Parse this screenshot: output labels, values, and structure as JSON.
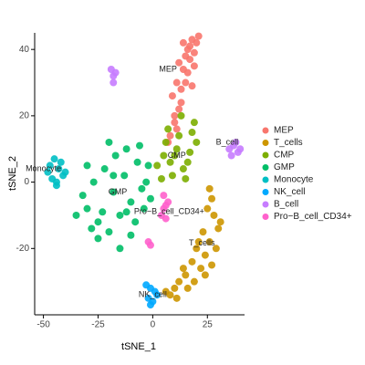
{
  "chart_data": {
    "type": "scatter",
    "x_label": "tSNE_1",
    "y_label": "tSNE_2",
    "xlim": [
      -54,
      42
    ],
    "ylim": [
      -40,
      45
    ],
    "xticks": [
      -50,
      -25,
      0,
      25
    ],
    "yticks": [
      -20,
      0,
      20,
      40
    ],
    "grid": false,
    "legend": "right",
    "series": [
      {
        "name": "MEP",
        "color": "#F8766D",
        "x": [
          8,
          10,
          12,
          9,
          11,
          13,
          14,
          12,
          15,
          16,
          14,
          17,
          18,
          16,
          19,
          20,
          15,
          13,
          11,
          17,
          19,
          21,
          18,
          10,
          7
        ],
        "y": [
          14,
          18,
          22,
          26,
          30,
          28,
          34,
          36,
          38,
          40,
          42,
          41,
          43,
          33,
          39,
          42,
          30,
          24,
          16,
          37,
          35,
          44,
          29,
          20,
          12
        ]
      },
      {
        "name": "T_cells",
        "color": "#CD9600",
        "x": [
          27,
          25,
          28,
          30,
          26,
          23,
          24,
          20,
          22,
          18,
          15,
          12,
          10,
          8,
          6,
          14,
          19,
          24,
          29,
          31,
          27,
          21,
          16,
          11,
          26
        ],
        "y": [
          -5,
          -8,
          -10,
          -14,
          -18,
          -15,
          -22,
          -20,
          -26,
          -24,
          -28,
          -30,
          -32,
          -34,
          -33,
          -26,
          -30,
          -28,
          -20,
          -12,
          -25,
          -18,
          -32,
          -35,
          -2
        ]
      },
      {
        "name": "CMP",
        "color": "#7CAE00",
        "x": [
          2,
          5,
          8,
          11,
          14,
          17,
          19,
          6,
          9,
          12,
          15,
          18,
          4,
          10,
          16,
          13,
          7,
          20
        ],
        "y": [
          5,
          8,
          6,
          10,
          4,
          9,
          18,
          12,
          2,
          14,
          1,
          15,
          1,
          8,
          6,
          20,
          16,
          12
        ]
      },
      {
        "name": "GMP",
        "color": "#00BE67",
        "x": [
          -35,
          -30,
          -25,
          -20,
          -15,
          -10,
          -5,
          -2,
          -32,
          -27,
          -22,
          -17,
          -12,
          -7,
          -3,
          -28,
          -23,
          -18,
          -13,
          -8,
          -4,
          -30,
          -20,
          -10,
          -15,
          -25,
          -18,
          -6,
          -12,
          -1
        ],
        "y": [
          -10,
          -8,
          -12,
          -15,
          -10,
          -6,
          -2,
          5,
          -4,
          0,
          4,
          8,
          10,
          6,
          0,
          -14,
          -9,
          -3,
          2,
          -12,
          -8,
          5,
          12,
          -16,
          -20,
          -17,
          2,
          11,
          -9,
          -5
        ]
      },
      {
        "name": "Monocyte",
        "color": "#00BFC4",
        "x": [
          -47,
          -45,
          -43,
          -41,
          -46,
          -44,
          -42,
          -40,
          -48,
          -44
        ],
        "y": [
          5,
          7,
          4,
          2,
          1,
          -1,
          6,
          3,
          3,
          0
        ]
      },
      {
        "name": "NK_cell",
        "color": "#00A9FF",
        "x": [
          -3,
          -1,
          1,
          -2,
          0,
          2,
          -1
        ],
        "y": [
          -31,
          -32,
          -33,
          -35,
          -36,
          -34,
          -37
        ]
      },
      {
        "name": "B_cell",
        "color": "#C77CFF",
        "x": [
          35,
          37,
          39,
          36,
          38,
          40,
          -19,
          -18,
          -17,
          -18
        ],
        "y": [
          10,
          11,
          9,
          8,
          12,
          10,
          34,
          32,
          33,
          30
        ]
      },
      {
        "name": "Pro−B_cell_CD34+",
        "color": "#FF61CC",
        "x": [
          5,
          6,
          4,
          5,
          6,
          7,
          -2,
          -1
        ],
        "y": [
          -4,
          -7,
          -10,
          -8,
          -11,
          -6,
          -18,
          -19
        ]
      }
    ],
    "annotations": [
      {
        "text": "MEP",
        "x": 7,
        "y": 34
      },
      {
        "text": "CMP",
        "x": 11,
        "y": 8
      },
      {
        "text": "GMP",
        "x": -16,
        "y": -3
      },
      {
        "text": "Monocyte",
        "x": -50,
        "y": 4
      },
      {
        "text": "NK_cell",
        "x": 0,
        "y": -34
      },
      {
        "text": "B_cell",
        "x": 34,
        "y": 12
      },
      {
        "text": "Pro−B_cell_CD34+",
        "x": 7.5,
        "y": -9
      },
      {
        "text": "T_cells",
        "x": 22.5,
        "y": -18.5
      }
    ]
  }
}
